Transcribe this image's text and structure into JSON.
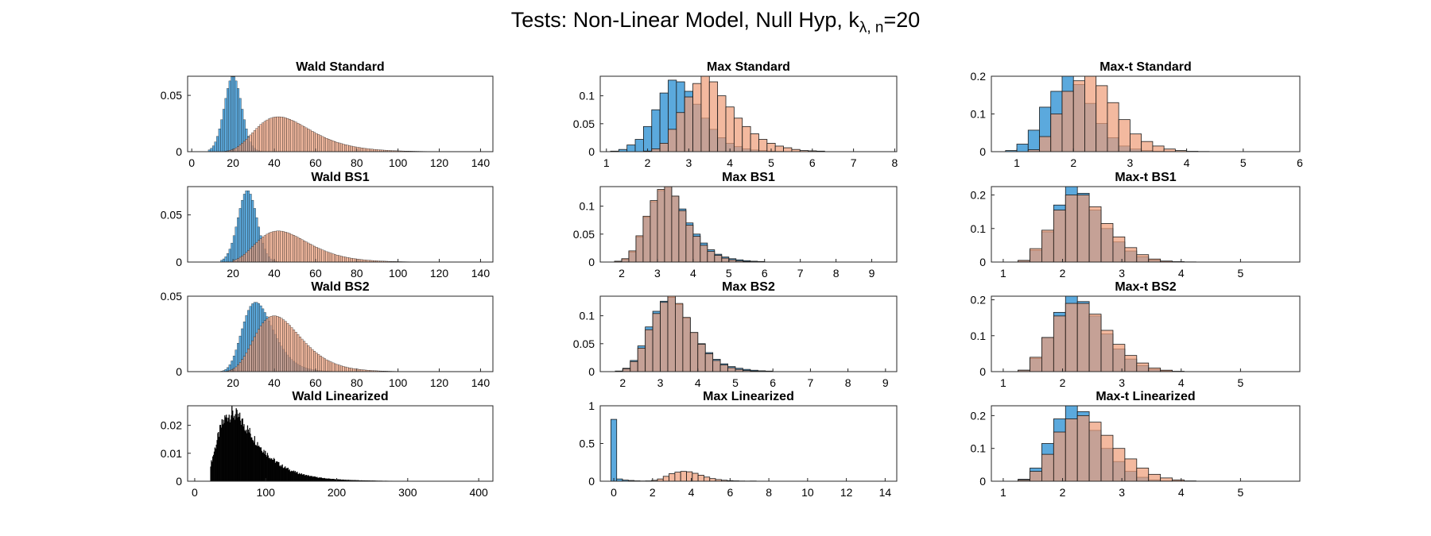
{
  "figure": {
    "title_main": "Tests: Non-Linear Model, Null Hyp, k",
    "title_sub": "λ, n",
    "title_tail": "=20"
  },
  "colors": {
    "blue": "#5ba9dd",
    "orange": "#ee9e7a",
    "overlap": "#a67a6f",
    "edge": "#1a1a1a",
    "black": "#000000"
  },
  "chart_data": [
    {
      "id": "wald-standard",
      "title": "Wald Standard",
      "type": "bar",
      "xlim": [
        -2,
        146
      ],
      "ylim": [
        0,
        0.067
      ],
      "xticks": [
        0,
        20,
        40,
        60,
        80,
        100,
        120,
        140
      ],
      "yticks": [
        0,
        0.05
      ],
      "ytick_labels": [
        "0",
        "0.05"
      ],
      "bin_width": 1,
      "series": [
        {
          "color": "blue",
          "kind": "normal",
          "mean": 20,
          "sd": 4.2,
          "peak": 0.067,
          "xmin": 8,
          "xmax": 40
        },
        {
          "color": "orange",
          "kind": "lognormal",
          "mode": 42,
          "sigma": 0.32,
          "peak": 0.031,
          "xmin": 14,
          "xmax": 140
        }
      ]
    },
    {
      "id": "max-standard",
      "title": "Max Standard",
      "type": "bar",
      "xlim": [
        0.85,
        8.05
      ],
      "ylim": [
        0,
        0.135
      ],
      "xticks": [
        1,
        2,
        3,
        4,
        5,
        6,
        7,
        8
      ],
      "yticks": [
        0,
        0.05,
        0.1
      ],
      "ytick_labels": [
        "0",
        "0.05",
        "0.1"
      ],
      "series": [
        {
          "color": "blue",
          "bin_start": 1.1,
          "bin_width": 0.2,
          "values": [
            0.001,
            0.004,
            0.012,
            0.022,
            0.045,
            0.075,
            0.105,
            0.128,
            0.125,
            0.108,
            0.085,
            0.06,
            0.04,
            0.025,
            0.015,
            0.009,
            0.005,
            0.003,
            0.002,
            0.001,
            0.0005
          ]
        },
        {
          "color": "orange",
          "bin_start": 1.9,
          "bin_width": 0.2,
          "values": [
            0.001,
            0.005,
            0.015,
            0.04,
            0.07,
            0.098,
            0.122,
            0.135,
            0.125,
            0.1,
            0.08,
            0.06,
            0.045,
            0.032,
            0.022,
            0.015,
            0.01,
            0.007,
            0.004,
            0.002,
            0.0015,
            0.001
          ]
        }
      ]
    },
    {
      "id": "maxt-standard",
      "title": "Max-t Standard",
      "type": "bar",
      "xlim": [
        0.55,
        6
      ],
      "ylim": [
        0,
        0.2
      ],
      "xticks": [
        1,
        2,
        3,
        4,
        5,
        6
      ],
      "yticks": [
        0,
        0.1,
        0.2
      ],
      "ytick_labels": [
        "0",
        "0.1",
        "0.2"
      ],
      "series": [
        {
          "color": "blue",
          "bin_start": 0.8,
          "bin_width": 0.2,
          "values": [
            0.003,
            0.02,
            0.057,
            0.118,
            0.16,
            0.2,
            0.178,
            0.128,
            0.075,
            0.037,
            0.015,
            0.007,
            0.003,
            0.001,
            0.0005
          ]
        },
        {
          "color": "orange",
          "bin_start": 1.2,
          "bin_width": 0.2,
          "values": [
            0.005,
            0.04,
            0.1,
            0.16,
            0.188,
            0.2,
            0.175,
            0.13,
            0.085,
            0.047,
            0.027,
            0.015,
            0.007,
            0.003,
            0.001,
            0.0005
          ]
        }
      ]
    },
    {
      "id": "wald-bs1",
      "title": "Wald BS1",
      "type": "bar",
      "xlim": [
        -2,
        146
      ],
      "ylim": [
        0,
        0.08
      ],
      "xticks": [
        20,
        40,
        60,
        80,
        100,
        120,
        140
      ],
      "yticks": [
        0,
        0.05
      ],
      "ytick_labels": [
        "0",
        "0.05"
      ],
      "bin_width": 1,
      "series": [
        {
          "color": "blue",
          "kind": "normal",
          "mean": 27,
          "sd": 4.6,
          "peak": 0.076,
          "xmin": 14,
          "xmax": 46
        },
        {
          "color": "orange",
          "kind": "lognormal",
          "mode": 42,
          "sigma": 0.3,
          "peak": 0.033,
          "xmin": 20,
          "xmax": 140
        }
      ]
    },
    {
      "id": "max-bs1",
      "title": "Max BS1",
      "type": "bar",
      "xlim": [
        1.4,
        9.7
      ],
      "ylim": [
        0,
        0.135
      ],
      "xticks": [
        2,
        3,
        4,
        5,
        6,
        7,
        8,
        9
      ],
      "yticks": [
        0,
        0.05,
        0.1
      ],
      "ytick_labels": [
        "0",
        "0.05",
        "0.1"
      ],
      "series": [
        {
          "color": "blue",
          "bin_start": 1.8,
          "bin_width": 0.2,
          "values": [
            0.001,
            0.005,
            0.018,
            0.045,
            0.08,
            0.108,
            0.128,
            0.135,
            0.118,
            0.095,
            0.07,
            0.05,
            0.034,
            0.022,
            0.014,
            0.009,
            0.006,
            0.004,
            0.0025,
            0.0015,
            0.001
          ]
        },
        {
          "color": "orange",
          "bin_start": 1.8,
          "bin_width": 0.2,
          "values": [
            0.0015,
            0.006,
            0.02,
            0.047,
            0.082,
            0.11,
            0.13,
            0.135,
            0.118,
            0.092,
            0.066,
            0.046,
            0.03,
            0.019,
            0.012,
            0.007,
            0.004,
            0.002,
            0.001,
            0.0007,
            0.0004
          ]
        }
      ]
    },
    {
      "id": "maxt-bs1",
      "title": "Max-t BS1",
      "type": "bar",
      "xlim": [
        0.8,
        6
      ],
      "ylim": [
        0,
        0.225
      ],
      "xticks": [
        1,
        2,
        3,
        4,
        5
      ],
      "yticks": [
        0,
        0.1,
        0.2
      ],
      "ytick_labels": [
        "0",
        "0.1",
        "0.2"
      ],
      "series": [
        {
          "color": "blue",
          "bin_start": 1.25,
          "bin_width": 0.2,
          "values": [
            0.004,
            0.035,
            0.09,
            0.17,
            0.225,
            0.205,
            0.155,
            0.1,
            0.06,
            0.033,
            0.016,
            0.006,
            0.002,
            0.001,
            0.0005
          ]
        },
        {
          "color": "orange",
          "bin_start": 1.25,
          "bin_width": 0.2,
          "values": [
            0.005,
            0.04,
            0.095,
            0.155,
            0.2,
            0.2,
            0.165,
            0.115,
            0.075,
            0.043,
            0.022,
            0.009,
            0.003,
            0.001
          ]
        }
      ]
    },
    {
      "id": "wald-bs2",
      "title": "Wald BS2",
      "type": "bar",
      "xlim": [
        -2,
        146
      ],
      "ylim": [
        0,
        0.05
      ],
      "xticks": [
        20,
        40,
        60,
        80,
        100,
        120,
        140
      ],
      "yticks": [
        0,
        0.05
      ],
      "ytick_labels": [
        "0",
        "0.05"
      ],
      "bin_width": 1,
      "series": [
        {
          "color": "blue",
          "kind": "lognormal",
          "mode": 31,
          "sigma": 0.24,
          "peak": 0.046,
          "xmin": 10,
          "xmax": 80
        },
        {
          "color": "orange",
          "kind": "lognormal",
          "mode": 40,
          "sigma": 0.28,
          "peak": 0.037,
          "xmin": 15,
          "xmax": 140
        }
      ]
    },
    {
      "id": "max-bs2",
      "title": "Max BS2",
      "type": "bar",
      "xlim": [
        1.4,
        9.3
      ],
      "ylim": [
        0,
        0.135
      ],
      "xticks": [
        2,
        3,
        4,
        5,
        6,
        7,
        8,
        9
      ],
      "yticks": [
        0,
        0.05,
        0.1
      ],
      "ytick_labels": [
        "0",
        "0.05",
        "0.1"
      ],
      "series": [
        {
          "color": "blue",
          "bin_start": 1.8,
          "bin_width": 0.2,
          "values": [
            0.001,
            0.006,
            0.02,
            0.046,
            0.08,
            0.108,
            0.126,
            0.133,
            0.12,
            0.096,
            0.07,
            0.05,
            0.034,
            0.022,
            0.014,
            0.009,
            0.006,
            0.004,
            0.0025,
            0.0015,
            0.001
          ]
        },
        {
          "color": "orange",
          "bin_start": 1.8,
          "bin_width": 0.2,
          "values": [
            0.001,
            0.005,
            0.018,
            0.042,
            0.075,
            0.104,
            0.124,
            0.135,
            0.122,
            0.097,
            0.07,
            0.049,
            0.032,
            0.02,
            0.012,
            0.007,
            0.004,
            0.002,
            0.001,
            0.0006,
            0.0003
          ]
        }
      ]
    },
    {
      "id": "maxt-bs2",
      "title": "Max-t BS2",
      "type": "bar",
      "xlim": [
        0.8,
        6
      ],
      "ylim": [
        0,
        0.21
      ],
      "xticks": [
        1,
        2,
        3,
        4,
        5
      ],
      "yticks": [
        0,
        0.1,
        0.2
      ],
      "ytick_labels": [
        "0",
        "0.1",
        "0.2"
      ],
      "series": [
        {
          "color": "blue",
          "bin_start": 1.25,
          "bin_width": 0.2,
          "values": [
            0.004,
            0.037,
            0.095,
            0.165,
            0.21,
            0.195,
            0.155,
            0.105,
            0.063,
            0.035,
            0.017,
            0.006,
            0.002,
            0.0005
          ]
        },
        {
          "color": "orange",
          "bin_start": 1.25,
          "bin_width": 0.2,
          "values": [
            0.004,
            0.04,
            0.095,
            0.155,
            0.19,
            0.19,
            0.16,
            0.115,
            0.076,
            0.045,
            0.024,
            0.01,
            0.004,
            0.001
          ]
        }
      ]
    },
    {
      "id": "wald-linearized",
      "title": "Wald Linearized",
      "type": "bar",
      "xlim": [
        -10,
        420
      ],
      "ylim": [
        0,
        0.027
      ],
      "xticks": [
        0,
        100,
        200,
        300,
        400
      ],
      "yticks": [
        0,
        0.01,
        0.02
      ],
      "ytick_labels": [
        "0",
        "0.01",
        "0.02"
      ],
      "bin_width": 1,
      "series": [
        {
          "color": "black",
          "kind": "lognormal",
          "mode": 52,
          "sigma": 0.5,
          "peak": 0.024,
          "xmin": 22,
          "xmax": 300,
          "jitter": 0.12
        }
      ]
    },
    {
      "id": "max-linearized",
      "title": "Max Linearized",
      "type": "bar",
      "xlim": [
        -0.7,
        14.6
      ],
      "ylim": [
        0,
        1
      ],
      "xticks": [
        0,
        2,
        4,
        6,
        8,
        10,
        12,
        14
      ],
      "yticks": [
        0,
        0.5,
        1
      ],
      "ytick_labels": [
        "0",
        "0.5",
        "1"
      ],
      "series": [
        {
          "color": "blue",
          "bin_start": -0.15,
          "bin_width": 0.3,
          "values": [
            0.82,
            0.03,
            0.015,
            0.01,
            0.005,
            0.003,
            0.002,
            0.001,
            0.001,
            0.001,
            0,
            0,
            0,
            0,
            0,
            0,
            0,
            0,
            0,
            0,
            0,
            0,
            0,
            0,
            0.003,
            0,
            0,
            0,
            0,
            0,
            0,
            0,
            0,
            0,
            0,
            0,
            0,
            0,
            0,
            0,
            0,
            0,
            0,
            0.001
          ]
        },
        {
          "color": "orange",
          "bin_start": 1.35,
          "bin_width": 0.3,
          "values": [
            0.001,
            0.004,
            0.012,
            0.03,
            0.065,
            0.1,
            0.12,
            0.13,
            0.125,
            0.105,
            0.08,
            0.055,
            0.035,
            0.022,
            0.013,
            0.008,
            0.005,
            0.003,
            0.002,
            0.001,
            0.0005
          ]
        }
      ]
    },
    {
      "id": "maxt-linearized",
      "title": "Max-t Linearized",
      "type": "bar",
      "xlim": [
        0.8,
        6
      ],
      "ylim": [
        0,
        0.23
      ],
      "xticks": [
        1,
        2,
        3,
        4,
        5
      ],
      "yticks": [
        0,
        0.1,
        0.2
      ],
      "ytick_labels": [
        "0",
        "0.1",
        "0.2"
      ],
      "series": [
        {
          "color": "blue",
          "bin_start": 1.25,
          "bin_width": 0.2,
          "values": [
            0.006,
            0.04,
            0.115,
            0.19,
            0.23,
            0.212,
            0.155,
            0.1,
            0.06,
            0.03,
            0.012,
            0.004,
            0.001,
            0.0005
          ]
        },
        {
          "color": "orange",
          "bin_start": 1.25,
          "bin_width": 0.2,
          "values": [
            0.004,
            0.03,
            0.082,
            0.15,
            0.19,
            0.2,
            0.18,
            0.14,
            0.1,
            0.068,
            0.04,
            0.021,
            0.01,
            0.004,
            0.001
          ]
        }
      ]
    }
  ]
}
